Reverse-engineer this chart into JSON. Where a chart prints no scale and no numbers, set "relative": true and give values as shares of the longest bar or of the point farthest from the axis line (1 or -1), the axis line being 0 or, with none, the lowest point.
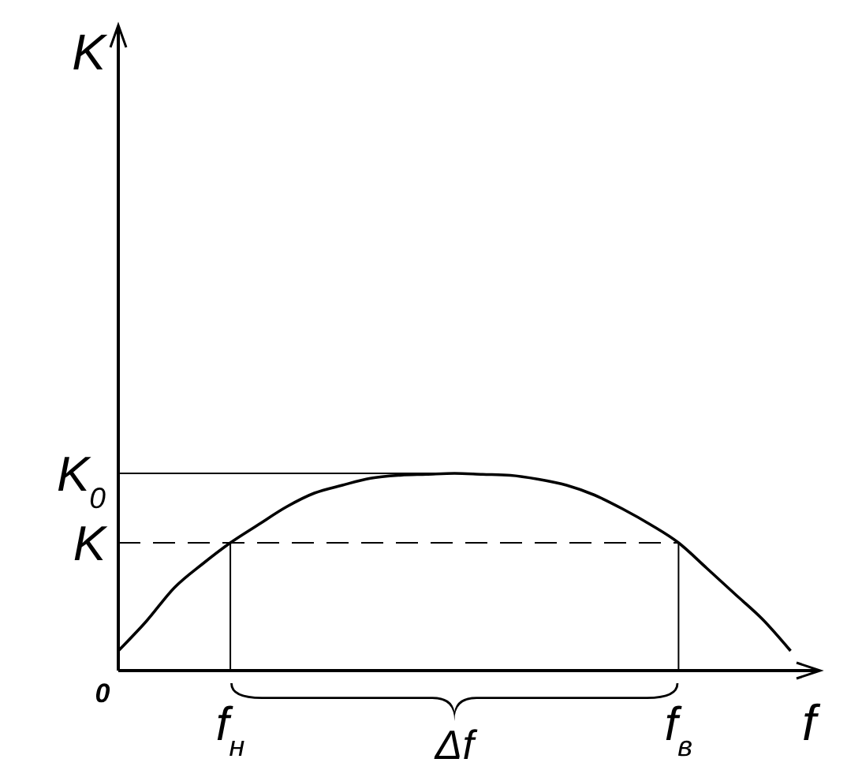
{
  "chart_data": {
    "type": "line",
    "relative": true,
    "xlabel": "f",
    "color": "#000000",
    "categories": [
      null,
      null,
      null,
      null,
      "f$_{н}$",
      null,
      null,
      null,
      null,
      null,
      null,
      null,
      null,
      null,
      null,
      null,
      null,
      null,
      null,
      null,
      "f$_{в}$",
      null,
      null,
      null,
      null,
      null
    ],
    "values": [
      0.1,
      0.25,
      0.42,
      0.54,
      0.648,
      0.74,
      0.83,
      0.9,
      0.94,
      0.975,
      0.99,
      0.995,
      1,
      0.995,
      0.99,
      0.97,
      0.94,
      0.89,
      0.82,
      0.74,
      0.648,
      0.52,
      0.39,
      0.26,
      0.1,
      null
    ],
    "ref_lines": [
      {
        "axis": "y",
        "value": 1,
        "label": "K$_{0}$",
        "line_style": "solid"
      },
      {
        "axis": "y",
        "value": 0.648,
        "label": "K",
        "line_style": "dashed"
      },
      {
        "axis": "x",
        "value": "f$_{н}$",
        "line_style": "solid"
      },
      {
        "axis": "x",
        "value": "f$_{в}$",
        "line_style": "solid"
      }
    ],
    "annotations": [
      "K",
      "0",
      "Δf"
    ],
    "marker": "none",
    "line_style": "solid"
  }
}
